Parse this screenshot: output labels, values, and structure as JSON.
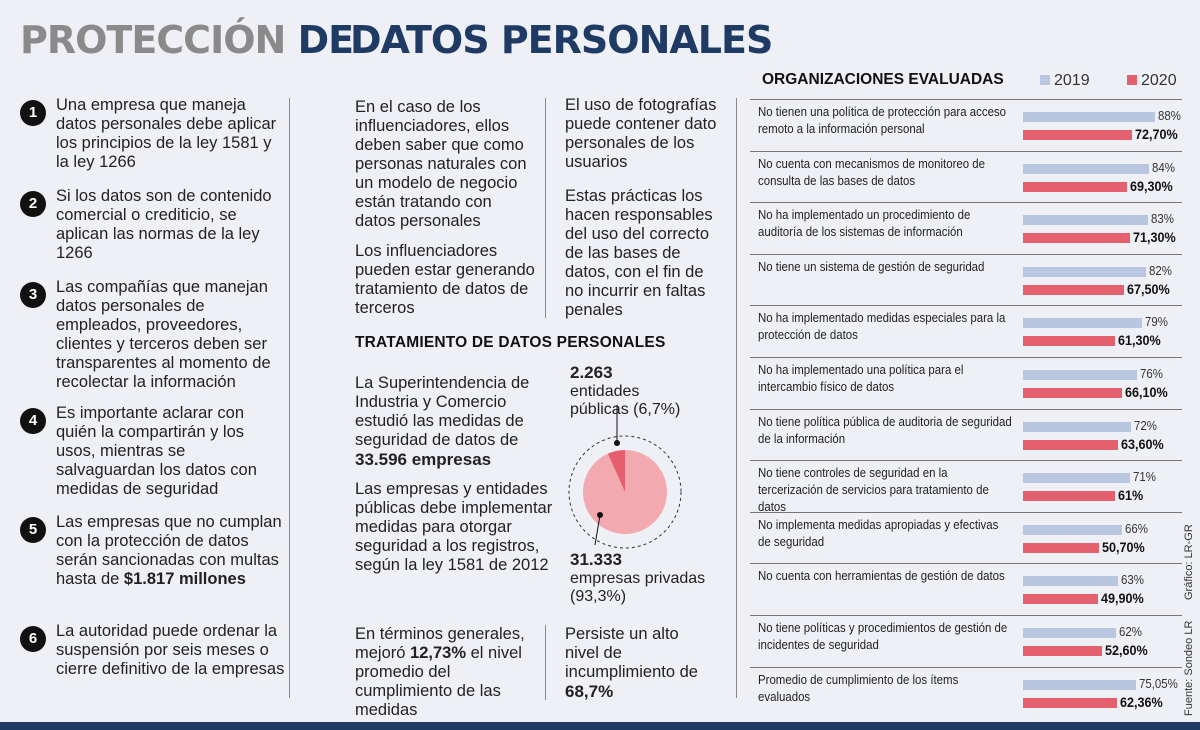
{
  "title": {
    "part1": "PROTECCIÓN",
    "part2": "DE",
    "part3": "DATOS PERSONALES"
  },
  "points": [
    {
      "num": "1",
      "text": "Una empresa que maneja datos personales debe aplicar los principios de la ley 1581 y la ley 1266"
    },
    {
      "num": "2",
      "text": "Si los datos son de contenido comercial o crediticio, se aplican las normas de la ley 1266"
    },
    {
      "num": "3",
      "text": "Las compañías que manejan datos personales de empleados, proveedores, clientes y terceros deben ser transparentes al momento de recolectar la información"
    },
    {
      "num": "4",
      "text": "Es importante aclarar con quién la compartirán y los usos, mientras se salvaguardan los datos con medidas de seguridad"
    },
    {
      "num": "5",
      "text": "Las empresas que no cumplan con la protección de datos serán sancionadas con multas hasta de",
      "bold": "$1.817 millones"
    },
    {
      "num": "6",
      "text": "La autoridad puede ordenar la suspensión por seis meses o cierre definitivo de la empresas"
    }
  ],
  "middle": {
    "col1a": "En el caso de los influenciadores, ellos deben saber que como personas naturales con un modelo de negocio están tratando con datos personales",
    "col1b": "Los influenciadores pueden estar generando tratamiento de datos de terceros",
    "col2a": "El uso de fotografías puede contener dato personales de los usuarios",
    "col2b": "Estas prácticas los hacen responsables del uso del correcto de las bases de datos, con el fin de no incurrir en faltas penales",
    "section_title": "TRATAMIENTO DE DATOS PERSONALES",
    "p1": "La Superintendencia de Industria y Comercio estudió las medidas de seguridad de datos de",
    "p1_bold": "33.596 empresas",
    "p2": "Las empresas y entidades públicas debe implementar medidas para otorgar seguridad a los registros, según la ley 1581 de 2012",
    "p3_pre": "En términos generales, mejoró",
    "p3_bold": "12,73%",
    "p3_post": "el nivel promedio del cumplimiento de las medidas",
    "p4_pre": "Persiste un alto nivel de incumplimiento de",
    "p4_bold": "68,7%"
  },
  "pie": {
    "public_count": "2.263",
    "public_label1": "entidades",
    "public_label2": "públicas (6,7%)",
    "public_pct": 6.7,
    "private_count": "31.333",
    "private_label1": "empresas privadas",
    "private_label2": "(93,3%)",
    "private_pct": 93.3,
    "color_private": "#f2a9b0",
    "color_public": "#e5606e"
  },
  "chart_data": {
    "type": "bar",
    "title": "ORGANIZACIONES EVALUADAS",
    "legend": [
      "2019",
      "2020"
    ],
    "colors": {
      "2019": "#b8c6e0",
      "2020": "#e5606e"
    },
    "categories": [
      "No tienen una política de protección para acceso remoto a la información personal",
      "No cuenta con mecanismos de monitoreo de consulta de las bases de datos",
      "No ha implementado un procedimiento de auditoría de los sistemas de información",
      "No tiene un sistema de gestión de seguridad",
      "No ha implementado medidas especiales para la protección de datos",
      "No ha implementado una política para el intercambio físico de datos",
      "No tiene política pública de auditoria de seguridad de la información",
      "No tiene controles de seguridad en la tercerización de servicios para tratamiento de datos",
      "No implementa medidas apropiadas y efectivas de seguridad",
      "No cuenta con herramientas de gestión de datos",
      "No tiene políticas y procedimientos de gestión de incidentes de seguridad",
      "Promedio de cumplimiento de los ítems evaluados"
    ],
    "series": [
      {
        "name": "2019",
        "values": [
          88,
          84,
          83,
          82,
          79,
          76,
          72,
          71,
          66,
          63,
          62,
          75.05
        ],
        "labels": [
          "88%",
          "84%",
          "83%",
          "82%",
          "79%",
          "76%",
          "72%",
          "71%",
          "66%",
          "63%",
          "62%",
          "75,05%"
        ]
      },
      {
        "name": "2020",
        "values": [
          72.7,
          69.3,
          71.3,
          67.5,
          61.3,
          66.1,
          63.6,
          61,
          50.7,
          49.9,
          52.6,
          62.36
        ],
        "labels": [
          "72,70%",
          "69,30%",
          "71,30%",
          "67,50%",
          "61,30%",
          "66,10%",
          "63,60%",
          "61%",
          "50,70%",
          "49,90%",
          "52,60%",
          "62,36%"
        ]
      }
    ]
  },
  "source": "Fuente: Sondeo LR",
  "credit": "Gráfico: LR-GR"
}
